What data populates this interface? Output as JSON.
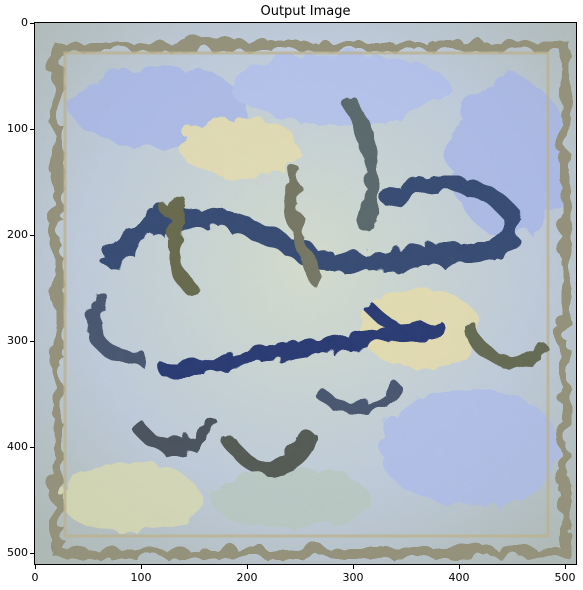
{
  "figure": {
    "title": "Output Image",
    "y_ticks": [
      "0",
      "100",
      "200",
      "300",
      "400",
      "500"
    ],
    "x_ticks": [
      "0",
      "100",
      "200",
      "300",
      "400",
      "500"
    ],
    "image_description_colors": {
      "background_light": "#c9d5c6",
      "sky_blue": "#9fb0e8",
      "frame": "#8d8a72",
      "ink_dark": "#2c3f6a",
      "ink_navy": "#1e2f6b",
      "accent_yellow": "#e8dba0"
    }
  }
}
